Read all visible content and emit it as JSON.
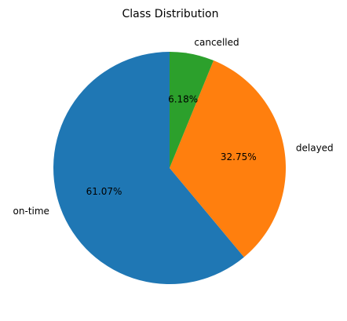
{
  "chart_data": {
    "type": "pie",
    "title": "Class Distribution",
    "labels": [
      "on-time",
      "delayed",
      "cancelled"
    ],
    "values": [
      61.07,
      32.75,
      6.18
    ],
    "percent_labels": [
      "61.07%",
      "32.75%",
      "6.18%"
    ],
    "colors": [
      "#1f77b4",
      "#ff7f0e",
      "#2ca02c"
    ],
    "start_angle_deg": 90,
    "direction": "counterclockwise"
  }
}
